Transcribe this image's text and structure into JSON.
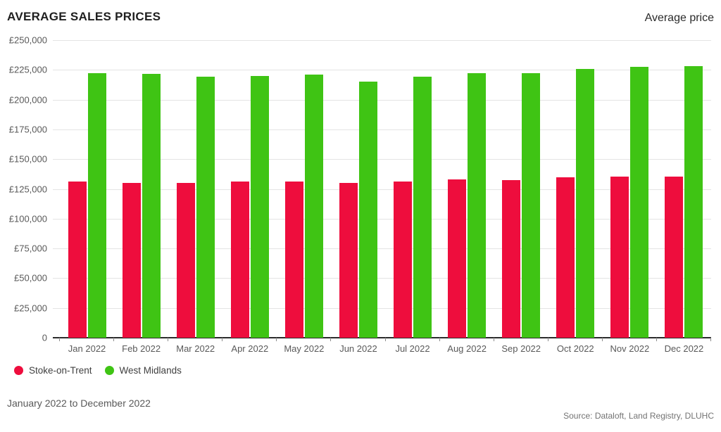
{
  "header": {
    "title": "AVERAGE SALES PRICES",
    "right_label": "Average price"
  },
  "footer": {
    "period": "January 2022 to December 2022",
    "source": "Source: Dataloft, Land Registry, DLUHC"
  },
  "colors": {
    "stoke_on_trent": "#ee0d3d",
    "west_midlands": "#3fc414",
    "gridline": "#e4e4e4",
    "axis": "#2b2b2b"
  },
  "chart_data": {
    "type": "bar",
    "title": "AVERAGE SALES PRICES",
    "subtitle": "Average price",
    "xlabel": "",
    "ylabel": "",
    "ylim": [
      0,
      250000
    ],
    "grid": "horizontal",
    "legend_position": "bottom-left",
    "categories": [
      "Jan 2022",
      "Feb 2022",
      "Mar 2022",
      "Apr 2022",
      "May 2022",
      "Jun 2022",
      "Jul 2022",
      "Aug 2022",
      "Sep 2022",
      "Oct 2022",
      "Nov 2022",
      "Dec 2022"
    ],
    "series": [
      {
        "name": "Stoke-on-Trent",
        "color": "#ee0d3d",
        "values": [
          131000,
          130000,
          130000,
          131000,
          131000,
          130000,
          131000,
          133000,
          132500,
          134500,
          135500,
          135500
        ]
      },
      {
        "name": "West Midlands",
        "color": "#3fc414",
        "values": [
          222000,
          221500,
          219500,
          220000,
          221000,
          215000,
          219500,
          222000,
          222000,
          225500,
          227500,
          228000
        ]
      }
    ],
    "y_ticks": [
      {
        "label": "£250,000",
        "value": 250000
      },
      {
        "label": "£225,000",
        "value": 225000
      },
      {
        "label": "£200,000",
        "value": 200000
      },
      {
        "label": "£175,000",
        "value": 175000
      },
      {
        "label": "£150,000",
        "value": 150000
      },
      {
        "label": "£125,000",
        "value": 125000
      },
      {
        "label": "£100,000",
        "value": 100000
      },
      {
        "label": "£75,000",
        "value": 75000
      },
      {
        "label": "£50,000",
        "value": 50000
      },
      {
        "label": "£25,000",
        "value": 25000
      },
      {
        "label": "0",
        "value": 0
      }
    ]
  }
}
